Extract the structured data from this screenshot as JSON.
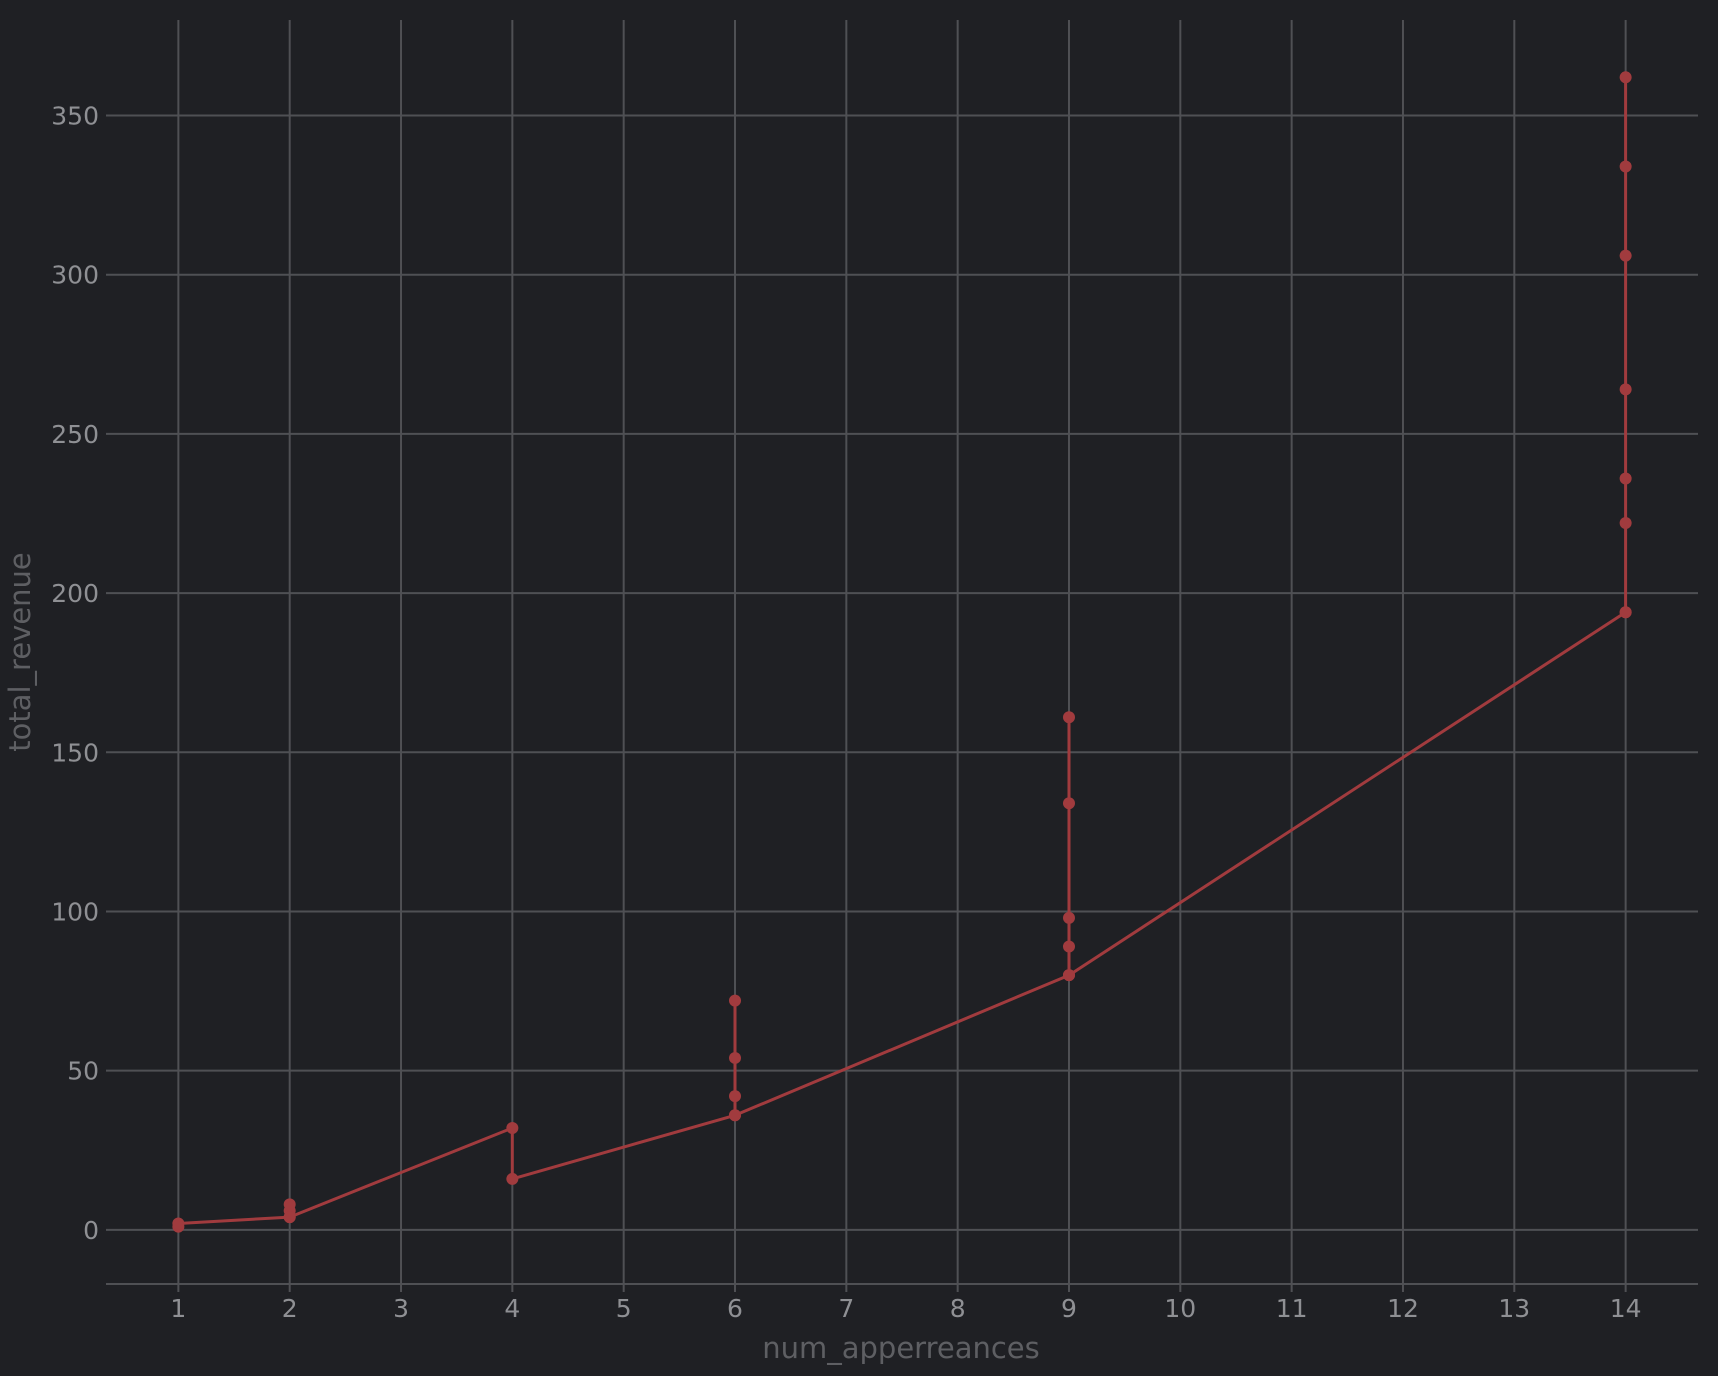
{
  "chart_data": {
    "type": "line",
    "title": "",
    "xlabel": "num_apperreances",
    "ylabel": "total_revenue",
    "xlim": [
      0.35,
      14.65
    ],
    "ylim": [
      -17,
      380
    ],
    "x_ticks": [
      1,
      2,
      3,
      4,
      5,
      6,
      7,
      8,
      9,
      10,
      11,
      12,
      13,
      14
    ],
    "y_ticks": [
      0,
      50,
      100,
      150,
      200,
      250,
      300,
      350
    ],
    "grid": true,
    "line_color": "#a13b3e",
    "background": "#1f2024",
    "grid_color": "#4f5054",
    "points": [
      {
        "x": 1,
        "y": 1
      },
      {
        "x": 1,
        "y": 2
      },
      {
        "x": 2,
        "y": 4
      },
      {
        "x": 2,
        "y": 6
      },
      {
        "x": 2,
        "y": 8
      },
      {
        "x": 2,
        "y": 4
      },
      {
        "x": 4,
        "y": 32
      },
      {
        "x": 4,
        "y": 16
      },
      {
        "x": 6,
        "y": 36
      },
      {
        "x": 6,
        "y": 42
      },
      {
        "x": 6,
        "y": 54
      },
      {
        "x": 6,
        "y": 72
      },
      {
        "x": 6,
        "y": 36
      },
      {
        "x": 9,
        "y": 80
      },
      {
        "x": 9,
        "y": 89
      },
      {
        "x": 9,
        "y": 98
      },
      {
        "x": 9,
        "y": 134
      },
      {
        "x": 9,
        "y": 161
      },
      {
        "x": 9,
        "y": 80
      },
      {
        "x": 14,
        "y": 194
      },
      {
        "x": 14,
        "y": 222
      },
      {
        "x": 14,
        "y": 236
      },
      {
        "x": 14,
        "y": 264
      },
      {
        "x": 14,
        "y": 306
      },
      {
        "x": 14,
        "y": 334
      },
      {
        "x": 14,
        "y": 362
      },
      {
        "x": 14,
        "y": 194
      }
    ]
  }
}
